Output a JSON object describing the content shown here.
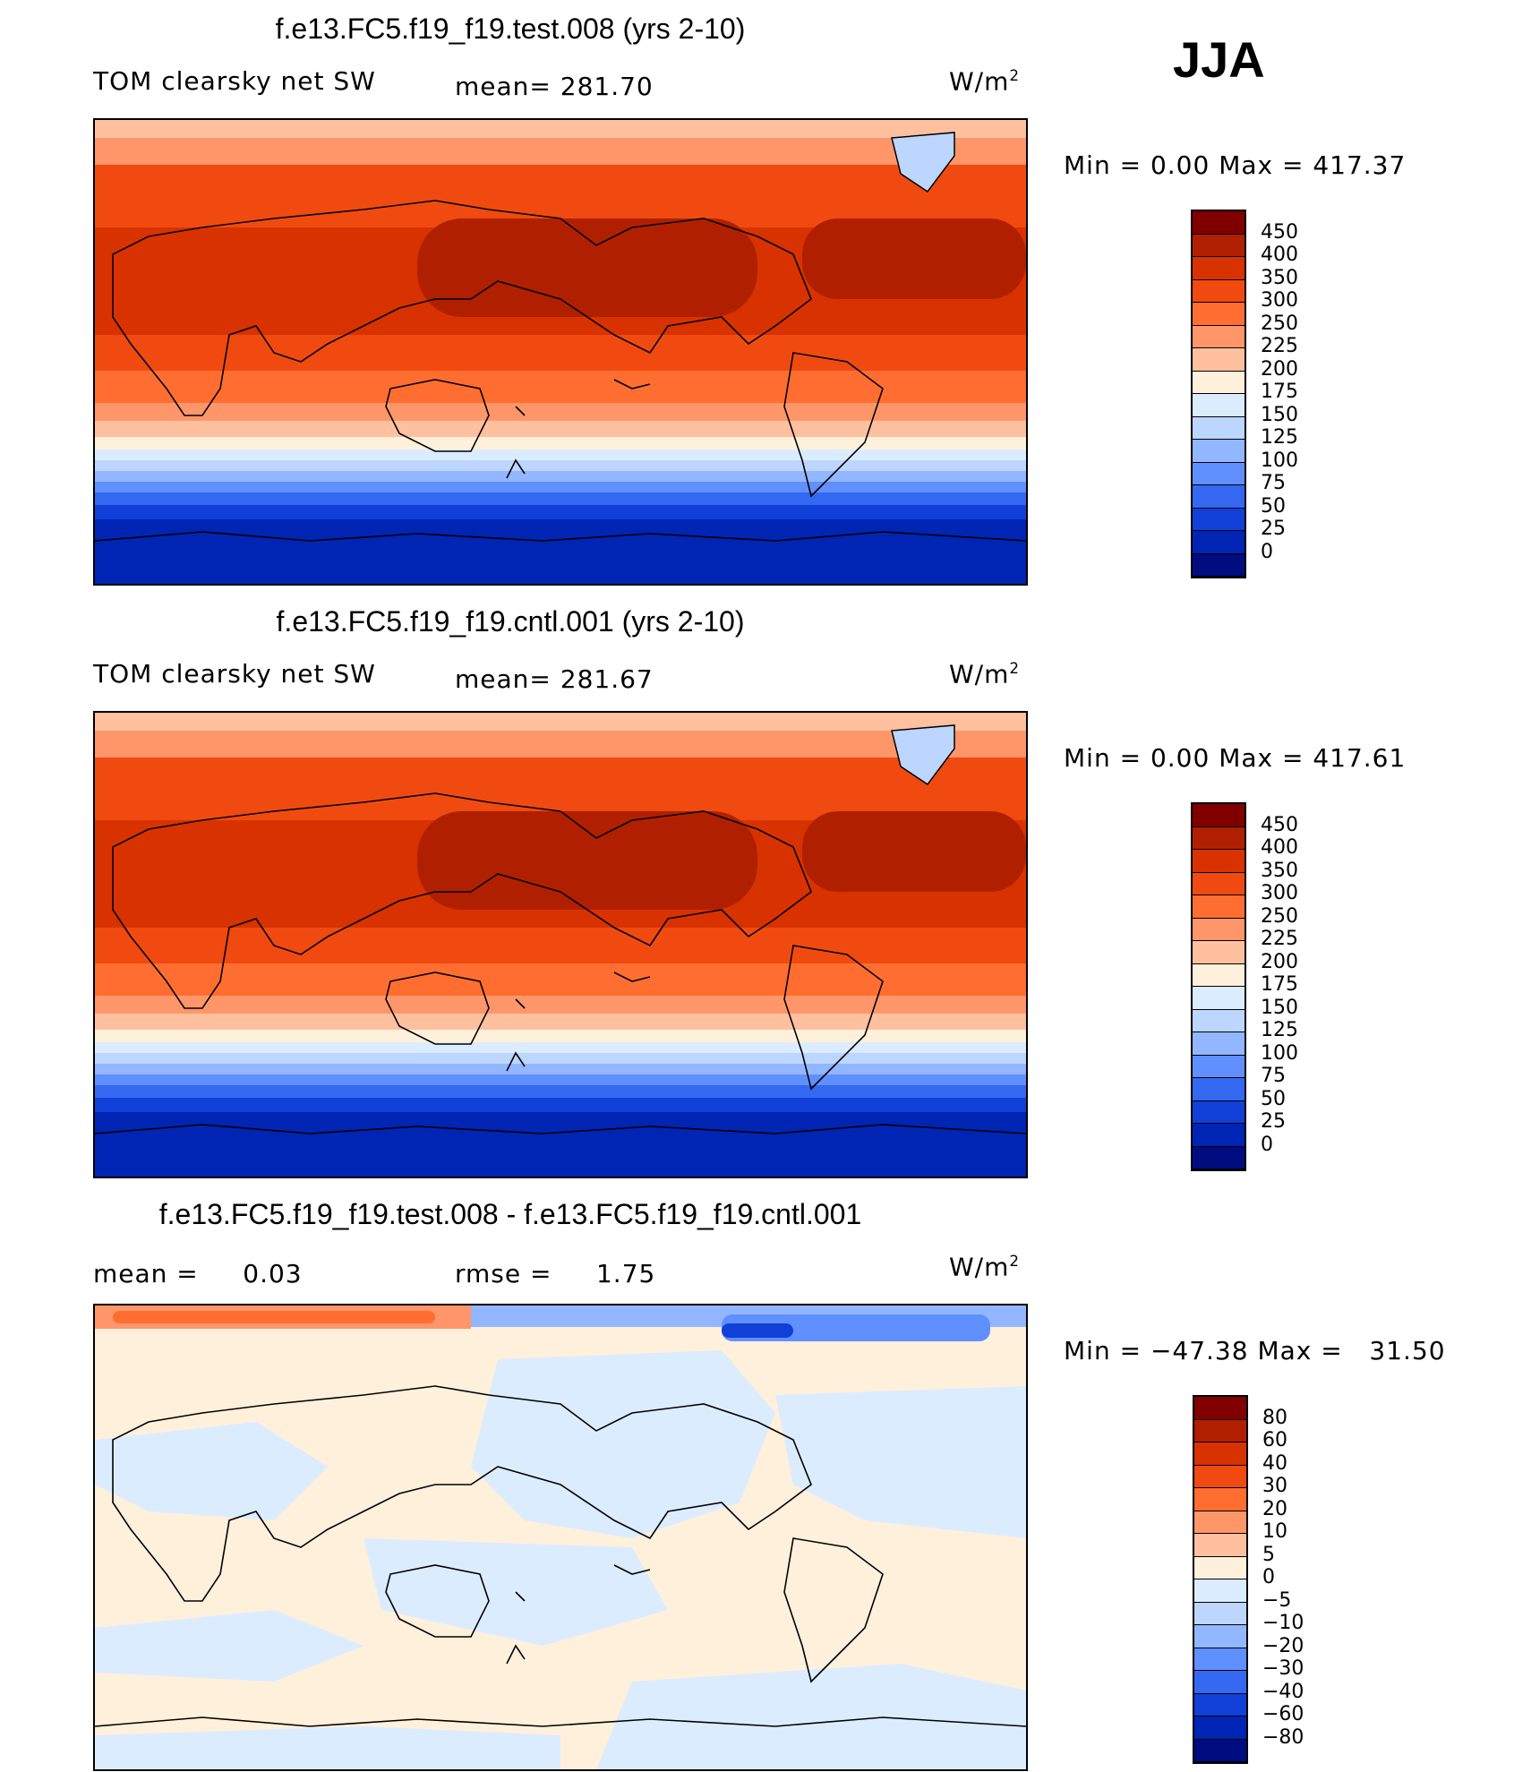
{
  "season": "JJA",
  "panels": [
    {
      "title": "f.e13.FC5.f19_f19.test.008 (yrs 2-10)",
      "left_label": "TOM clearsky net SW",
      "mid_label": "mean= 281.70",
      "units_base": "W/m",
      "units_exp": "2",
      "minmax": "Min =     0.00 Max =  417.37",
      "colorbar": {
        "labels": [
          "450",
          "400",
          "350",
          "300",
          "250",
          "225",
          "200",
          "175",
          "150",
          "125",
          "100",
          "75",
          "50",
          "25",
          "0"
        ],
        "colors": [
          "#800000",
          "#b02000",
          "#d83200",
          "#f04a10",
          "#ff6e30",
          "#ff966a",
          "#ffc0a0",
          "#fff0dc",
          "#dcecff",
          "#bcd6ff",
          "#92b6ff",
          "#6090ff",
          "#3468f0",
          "#1040d8",
          "#0024b4",
          "#000c80"
        ]
      }
    },
    {
      "title": "f.e13.FC5.f19_f19.cntl.001 (yrs 2-10)",
      "left_label": "TOM clearsky net SW",
      "mid_label": "mean= 281.67",
      "units_base": "W/m",
      "units_exp": "2",
      "minmax": "Min =     0.00 Max =  417.61",
      "colorbar": {
        "labels": [
          "450",
          "400",
          "350",
          "300",
          "250",
          "225",
          "200",
          "175",
          "150",
          "125",
          "100",
          "75",
          "50",
          "25",
          "0"
        ],
        "colors": [
          "#800000",
          "#b02000",
          "#d83200",
          "#f04a10",
          "#ff6e30",
          "#ff966a",
          "#ffc0a0",
          "#fff0dc",
          "#dcecff",
          "#bcd6ff",
          "#92b6ff",
          "#6090ff",
          "#3468f0",
          "#1040d8",
          "#0024b4",
          "#000c80"
        ]
      }
    },
    {
      "title": "f.e13.FC5.f19_f19.test.008 - f.e13.FC5.f19_f19.cntl.001",
      "left_label": "mean =     0.03",
      "mid_label": "rmse =     1.75",
      "units_base": "W/m",
      "units_exp": "2",
      "minmax": "Min = −47.38 Max =   31.50",
      "colorbar": {
        "labels": [
          "80",
          "60",
          "40",
          "30",
          "20",
          "10",
          "5",
          "0",
          "−5",
          "−10",
          "−20",
          "−30",
          "−40",
          "−60",
          "−80"
        ],
        "colors": [
          "#800000",
          "#b02000",
          "#d83200",
          "#f04a10",
          "#ff6e30",
          "#ff966a",
          "#ffc0a0",
          "#fff0dc",
          "#dcecff",
          "#bcd6ff",
          "#92b6ff",
          "#6090ff",
          "#3468f0",
          "#1040d8",
          "#0024b4",
          "#000c80"
        ]
      }
    }
  ]
}
